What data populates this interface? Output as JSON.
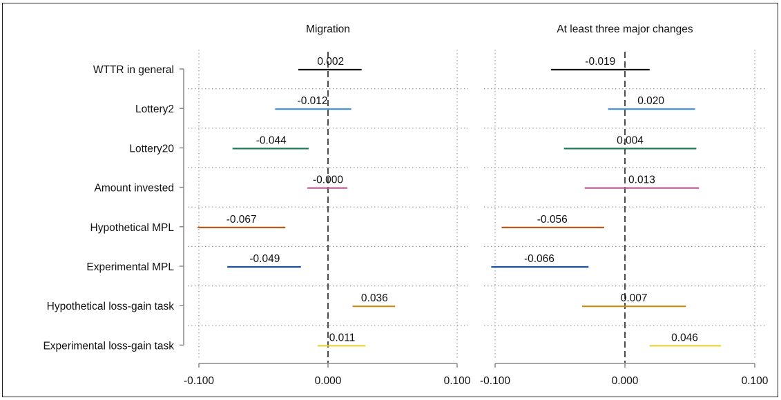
{
  "chart_data": {
    "type": "coefficient-plot",
    "rows": [
      "WTTR in general",
      "Lottery2",
      "Lottery20",
      "Amount invested",
      "Hypothetical MPL",
      "Experimental MPL",
      "Hypothetical loss-gain task",
      "Experimental loss-gain task"
    ],
    "colors": [
      "#000000",
      "#3a8fd6",
      "#1f7a55",
      "#c6579a",
      "#b8500e",
      "#1c4f99",
      "#d08a10",
      "#e8d43a"
    ],
    "xlim": [
      -0.1,
      0.1
    ],
    "xticks": [
      -0.1,
      0.0,
      0.1
    ],
    "xtick_labels": [
      "-0.100",
      "0.000",
      "0.100"
    ],
    "reference_line": 0,
    "grid": true,
    "panels": [
      {
        "title": "Migration",
        "estimates": [
          0.002,
          -0.012,
          -0.044,
          -0.0,
          -0.067,
          -0.049,
          0.036,
          0.011
        ],
        "labels": [
          "0.002",
          "-0.012",
          "-0.044",
          "-0.000",
          "-0.067",
          "-0.049",
          "0.036",
          "0.011"
        ],
        "ci_low": [
          -0.023,
          -0.041,
          -0.074,
          -0.016,
          -0.101,
          -0.078,
          0.019,
          -0.008
        ],
        "ci_high": [
          0.026,
          0.018,
          -0.015,
          0.015,
          -0.033,
          -0.021,
          0.052,
          0.029
        ]
      },
      {
        "title": "At least three major changes",
        "estimates": [
          -0.019,
          0.02,
          0.004,
          0.013,
          -0.056,
          -0.066,
          0.007,
          0.046
        ],
        "labels": [
          "-0.019",
          "0.020",
          "0.004",
          "0.013",
          "-0.056",
          "-0.066",
          "0.007",
          "0.046"
        ],
        "ci_low": [
          -0.057,
          -0.013,
          -0.047,
          -0.031,
          -0.095,
          -0.103,
          -0.033,
          0.019
        ],
        "ci_high": [
          0.019,
          0.054,
          0.055,
          0.057,
          -0.016,
          -0.028,
          0.047,
          0.074
        ]
      }
    ]
  }
}
